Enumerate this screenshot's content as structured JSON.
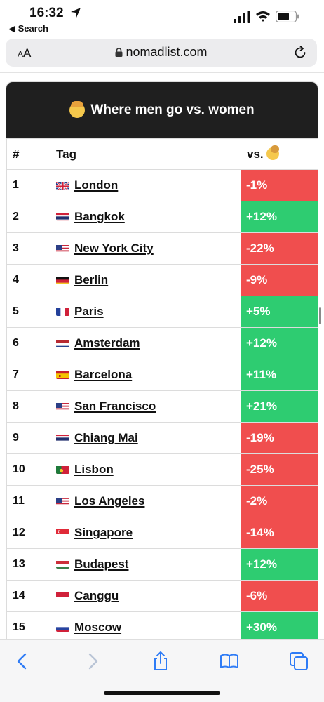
{
  "status": {
    "time": "16:32",
    "back_label": "◀ Search"
  },
  "browser": {
    "text_size_label": "AA",
    "url": "nomadlist.com"
  },
  "card": {
    "title": "Where men go vs. women",
    "headers": {
      "rank": "#",
      "tag": "Tag",
      "vs": "vs."
    }
  },
  "rows": [
    {
      "rank": "1",
      "city": "London",
      "value": "-1%",
      "flag": "gb"
    },
    {
      "rank": "2",
      "city": "Bangkok",
      "value": "+12%",
      "flag": "th"
    },
    {
      "rank": "3",
      "city": "New York City",
      "value": "-22%",
      "flag": "us"
    },
    {
      "rank": "4",
      "city": "Berlin",
      "value": "-9%",
      "flag": "de"
    },
    {
      "rank": "5",
      "city": "Paris",
      "value": "+5%",
      "flag": "fr"
    },
    {
      "rank": "6",
      "city": "Amsterdam",
      "value": "+12%",
      "flag": "nl"
    },
    {
      "rank": "7",
      "city": "Barcelona",
      "value": "+11%",
      "flag": "es"
    },
    {
      "rank": "8",
      "city": "San Francisco",
      "value": "+21%",
      "flag": "us"
    },
    {
      "rank": "9",
      "city": "Chiang Mai",
      "value": "-19%",
      "flag": "th"
    },
    {
      "rank": "10",
      "city": "Lisbon",
      "value": "-25%",
      "flag": "pt"
    },
    {
      "rank": "11",
      "city": "Los Angeles",
      "value": "-2%",
      "flag": "us"
    },
    {
      "rank": "12",
      "city": "Singapore",
      "value": "-14%",
      "flag": "sg"
    },
    {
      "rank": "13",
      "city": "Budapest",
      "value": "+12%",
      "flag": "hu"
    },
    {
      "rank": "14",
      "city": "Canggu",
      "value": "-6%",
      "flag": "id"
    },
    {
      "rank": "15",
      "city": "Moscow",
      "value": "+30%",
      "flag": "ru"
    }
  ],
  "colors": {
    "positive": "#2ecc71",
    "negative": "#f04e4e",
    "header_bg": "#1f1f1f"
  }
}
